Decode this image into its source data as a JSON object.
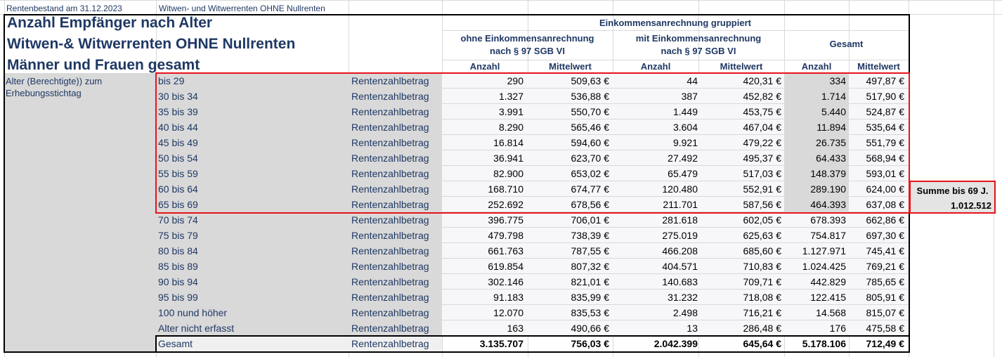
{
  "meta": {
    "bestand": "Rentenbestand am 31.12.2023",
    "rentenart": "Witwen- und Witwerrenten OHNE Nullrenten"
  },
  "titles": {
    "line1": "Anzahl Empfänger nach Alter",
    "line2": "Witwen-& Witwerrenten OHNE Nullrenten",
    "line3": "Männer und Frauen gesamt"
  },
  "header": {
    "group": "Einkommensanrechnung gruppiert",
    "ohne": "ohne Einkommensanrechnung\nnach § 97 SGB VI",
    "mit": "mit Einkommensanrechnung\nnach § 97 SGB VI",
    "gesamt": "Gesamt",
    "anzahl": "Anzahl",
    "mittelwert": "Mittelwert"
  },
  "side_label": "Alter (Berechtigte)) zum Erhebungsstichtag",
  "rows": [
    {
      "label": "bis 29",
      "type": "Rentenzahlbetrag",
      "a1": "290",
      "m1": "509,63 €",
      "a2": "44",
      "m2": "420,31 €",
      "a3": "334",
      "m3": "497,87 €"
    },
    {
      "label": "30 bis 34",
      "type": "Rentenzahlbetrag",
      "a1": "1.327",
      "m1": "536,88 €",
      "a2": "387",
      "m2": "452,82 €",
      "a3": "1.714",
      "m3": "517,90 €"
    },
    {
      "label": "35 bis 39",
      "type": "Rentenzahlbetrag",
      "a1": "3.991",
      "m1": "550,70 €",
      "a2": "1.449",
      "m2": "453,75 €",
      "a3": "5.440",
      "m3": "524,87 €"
    },
    {
      "label": "40 bis 44",
      "type": "Rentenzahlbetrag",
      "a1": "8.290",
      "m1": "565,46 €",
      "a2": "3.604",
      "m2": "467,04 €",
      "a3": "11.894",
      "m3": "535,64 €"
    },
    {
      "label": "45 bis 49",
      "type": "Rentenzahlbetrag",
      "a1": "16.814",
      "m1": "594,60 €",
      "a2": "9.921",
      "m2": "479,22 €",
      "a3": "26.735",
      "m3": "551,79 €"
    },
    {
      "label": "50 bis 54",
      "type": "Rentenzahlbetrag",
      "a1": "36.941",
      "m1": "623,70 €",
      "a2": "27.492",
      "m2": "495,37 €",
      "a3": "64.433",
      "m3": "568,94 €"
    },
    {
      "label": "55 bis 59",
      "type": "Rentenzahlbetrag",
      "a1": "82.900",
      "m1": "653,02 €",
      "a2": "65.479",
      "m2": "517,03 €",
      "a3": "148.379",
      "m3": "593,01 €"
    },
    {
      "label": "60 bis 64",
      "type": "Rentenzahlbetrag",
      "a1": "168.710",
      "m1": "674,77 €",
      "a2": "120.480",
      "m2": "552,91 €",
      "a3": "289.190",
      "m3": "624,00 €"
    },
    {
      "label": "65 bis 69",
      "type": "Rentenzahlbetrag",
      "a1": "252.692",
      "m1": "678,56 €",
      "a2": "211.701",
      "m2": "587,56 €",
      "a3": "464.393",
      "m3": "637,08 €"
    },
    {
      "label": "70 bis 74",
      "type": "Rentenzahlbetrag",
      "a1": "396.775",
      "m1": "706,01 €",
      "a2": "281.618",
      "m2": "602,05 €",
      "a3": "678.393",
      "m3": "662,86 €"
    },
    {
      "label": "75 bis 79",
      "type": "Rentenzahlbetrag",
      "a1": "479.798",
      "m1": "738,39 €",
      "a2": "275.019",
      "m2": "625,63 €",
      "a3": "754.817",
      "m3": "697,30 €"
    },
    {
      "label": "80 bis 84",
      "type": "Rentenzahlbetrag",
      "a1": "661.763",
      "m1": "787,55 €",
      "a2": "466.208",
      "m2": "685,60 €",
      "a3": "1.127.971",
      "m3": "745,41 €"
    },
    {
      "label": "85 bis 89",
      "type": "Rentenzahlbetrag",
      "a1": "619.854",
      "m1": "807,32 €",
      "a2": "404.571",
      "m2": "710,83 €",
      "a3": "1.024.425",
      "m3": "769,21 €"
    },
    {
      "label": "90 bis 94",
      "type": "Rentenzahlbetrag",
      "a1": "302.146",
      "m1": "821,01 €",
      "a2": "140.683",
      "m2": "709,71 €",
      "a3": "442.829",
      "m3": "785,65 €"
    },
    {
      "label": "95 bis 99",
      "type": "Rentenzahlbetrag",
      "a1": "91.183",
      "m1": "835,99 €",
      "a2": "31.232",
      "m2": "718,08 €",
      "a3": "122.415",
      "m3": "805,91 €"
    },
    {
      "label": "100 nund höher",
      "type": "Rentenzahlbetrag",
      "a1": "12.070",
      "m1": "835,53 €",
      "a2": "2.498",
      "m2": "716,21 €",
      "a3": "14.568",
      "m3": "815,07 €"
    },
    {
      "label": "Alter nicht erfasst",
      "type": "Rentenzahlbetrag",
      "a1": "163",
      "m1": "490,66 €",
      "a2": "13",
      "m2": "286,48 €",
      "a3": "176",
      "m3": "475,58 €"
    }
  ],
  "total": {
    "label": "Gesamt",
    "type": "Rentenzahlbetrag",
    "a1": "3.135.707",
    "m1": "756,03 €",
    "a2": "2.042.399",
    "m2": "645,64 €",
    "a3": "5.178.106",
    "m3": "712,49 €"
  },
  "summary": {
    "label": "Summe bis 69 J.",
    "value": "1.012.512"
  },
  "colors": {
    "border_red": "#e8131b",
    "text_blue": "#1f3864",
    "grey_fill": "#d9d9d9"
  }
}
